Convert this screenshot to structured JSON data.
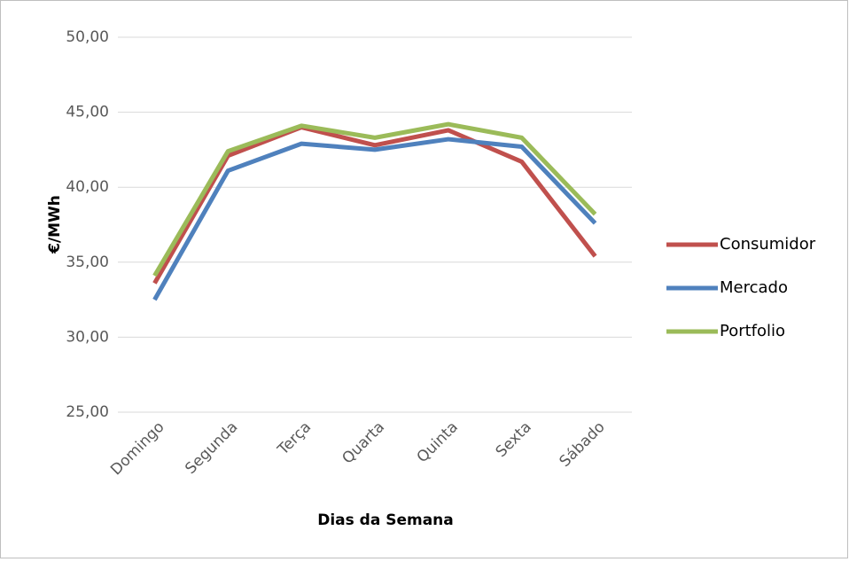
{
  "chart_data": {
    "type": "line",
    "categories": [
      "Domingo",
      "Segunda",
      "Terça",
      "Quarta",
      "Quinta",
      "Sexta",
      "Sábado"
    ],
    "series": [
      {
        "name": "Consumidor",
        "color": "#c0504d",
        "values": [
          33.6,
          42.1,
          44.0,
          42.8,
          43.8,
          41.7,
          35.4
        ]
      },
      {
        "name": "Mercado",
        "color": "#4f81bd",
        "values": [
          32.5,
          41.1,
          42.9,
          42.5,
          43.2,
          42.7,
          37.6
        ]
      },
      {
        "name": "Portfolio",
        "color": "#9bbb59",
        "values": [
          34.1,
          42.4,
          44.1,
          43.3,
          44.2,
          43.3,
          38.2
        ]
      }
    ],
    "ylim": [
      25,
      50
    ],
    "yticks": [
      {
        "value": 25,
        "label": "25,00"
      },
      {
        "value": 30,
        "label": "30,00"
      },
      {
        "value": 35,
        "label": "35,00"
      },
      {
        "value": 40,
        "label": "40,00"
      },
      {
        "value": 45,
        "label": "45,00"
      },
      {
        "value": 50,
        "label": "50,00"
      }
    ],
    "ylabel": "€/MWh",
    "xlabel": "Dias da Semana",
    "grid": true,
    "legend": "right"
  }
}
